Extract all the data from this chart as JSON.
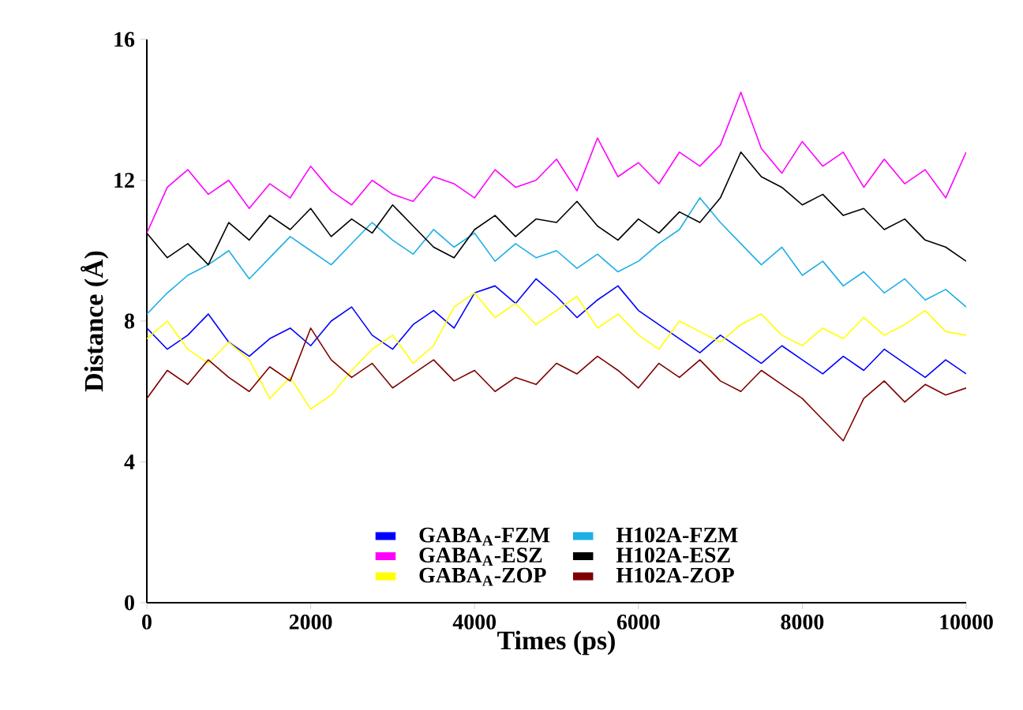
{
  "chart_data": {
    "type": "line",
    "xlabel": "Times (ps)",
    "ylabel": "Distance (Å)",
    "x": [
      0,
      250,
      500,
      750,
      1000,
      1250,
      1500,
      1750,
      2000,
      2250,
      2500,
      2750,
      3000,
      3250,
      3500,
      3750,
      4000,
      4250,
      4500,
      4750,
      5000,
      5250,
      5500,
      5750,
      6000,
      6250,
      6500,
      6750,
      7000,
      7250,
      7500,
      7750,
      8000,
      8250,
      8500,
      8750,
      9000,
      9250,
      9500,
      9750,
      10000
    ],
    "series": [
      {
        "name": "GABA$_{A}$-FZM",
        "color": "#0000ff",
        "values": [
          7.8,
          7.2,
          7.6,
          8.2,
          7.4,
          7.0,
          7.5,
          7.8,
          7.3,
          8.0,
          8.4,
          7.6,
          7.2,
          7.9,
          8.3,
          7.8,
          8.8,
          9.0,
          8.5,
          9.2,
          8.7,
          8.1,
          8.6,
          9.0,
          8.3,
          7.9,
          7.5,
          7.1,
          7.6,
          7.2,
          6.8,
          7.3,
          6.9,
          6.5,
          7.0,
          6.6,
          7.2,
          6.8,
          6.4,
          6.9,
          6.5
        ]
      },
      {
        "name": "H102A-FZM",
        "color": "#1eaee6",
        "values": [
          8.2,
          8.8,
          9.3,
          9.6,
          10.0,
          9.2,
          9.8,
          10.4,
          10.0,
          9.6,
          10.2,
          10.8,
          10.3,
          9.9,
          10.6,
          10.1,
          10.5,
          9.7,
          10.2,
          9.8,
          10.0,
          9.5,
          9.9,
          9.4,
          9.7,
          10.2,
          10.6,
          11.5,
          10.8,
          10.2,
          9.6,
          10.1,
          9.3,
          9.7,
          9.0,
          9.4,
          8.8,
          9.2,
          8.6,
          8.9,
          8.4
        ]
      },
      {
        "name": "GABA$_{A}$-ESZ",
        "color": "#ff00ff",
        "values": [
          10.5,
          11.8,
          12.3,
          11.6,
          12.0,
          11.2,
          11.9,
          11.5,
          12.4,
          11.7,
          11.3,
          12.0,
          11.6,
          11.4,
          12.1,
          11.9,
          11.5,
          12.3,
          11.8,
          12.0,
          12.6,
          11.7,
          13.2,
          12.1,
          12.5,
          11.9,
          12.8,
          12.4,
          13.0,
          14.5,
          12.9,
          12.2,
          13.1,
          12.4,
          12.8,
          11.8,
          12.6,
          11.9,
          12.3,
          11.5,
          12.8
        ]
      },
      {
        "name": "H102A-ESZ",
        "color": "#000000",
        "values": [
          10.5,
          9.8,
          10.2,
          9.6,
          10.8,
          10.3,
          11.0,
          10.6,
          11.2,
          10.4,
          10.9,
          10.5,
          11.3,
          10.7,
          10.1,
          9.8,
          10.6,
          11.0,
          10.4,
          10.9,
          10.8,
          11.4,
          10.7,
          10.3,
          10.9,
          10.5,
          11.1,
          10.8,
          11.5,
          12.8,
          12.1,
          11.8,
          11.3,
          11.6,
          11.0,
          11.2,
          10.6,
          10.9,
          10.3,
          10.1,
          9.7
        ]
      },
      {
        "name": "GABA$_{A}$-ZOP",
        "color": "#ffff00",
        "values": [
          7.5,
          8.0,
          7.2,
          6.8,
          7.4,
          6.9,
          5.8,
          6.4,
          5.5,
          5.9,
          6.6,
          7.2,
          7.6,
          6.8,
          7.3,
          8.4,
          8.8,
          8.1,
          8.5,
          7.9,
          8.3,
          8.7,
          7.8,
          8.2,
          7.6,
          7.2,
          8.0,
          7.7,
          7.4,
          7.9,
          8.2,
          7.6,
          7.3,
          7.8,
          7.5,
          8.1,
          7.6,
          7.9,
          8.3,
          7.7,
          7.6
        ]
      },
      {
        "name": "H102A-ZOP",
        "color": "#7f0000",
        "values": [
          5.8,
          6.6,
          6.2,
          6.9,
          6.4,
          6.0,
          6.7,
          6.3,
          7.8,
          6.9,
          6.4,
          6.8,
          6.1,
          6.5,
          6.9,
          6.3,
          6.6,
          6.0,
          6.4,
          6.2,
          6.8,
          6.5,
          7.0,
          6.6,
          6.1,
          6.8,
          6.4,
          6.9,
          6.3,
          6.0,
          6.6,
          6.2,
          5.8,
          5.2,
          4.6,
          5.8,
          6.3,
          5.7,
          6.2,
          5.9,
          6.1
        ]
      }
    ],
    "xlim": [
      0,
      10000
    ],
    "ylim": [
      0,
      16
    ],
    "xticks": [
      0,
      2000,
      4000,
      6000,
      8000,
      10000
    ],
    "yticks": [
      0,
      4,
      8,
      12,
      16
    ],
    "legend": "bottom",
    "marker": "none",
    "line_style": "solid"
  }
}
